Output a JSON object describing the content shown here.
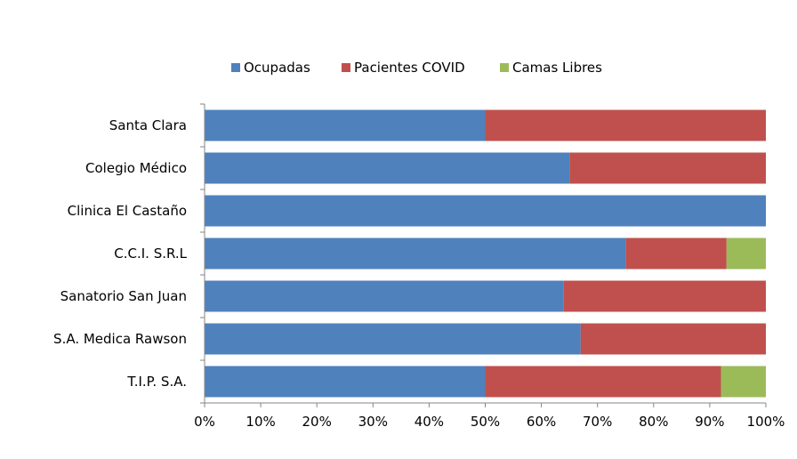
{
  "chart_data": {
    "type": "bar",
    "orientation": "horizontal",
    "stacked": "percent",
    "categories": [
      "Santa Clara",
      "Colegio Médico",
      "Clinica El Castaño",
      "C.C.I. S.R.L",
      "Sanatorio San Juan",
      "S.A. Medica Rawson",
      "T.I.P. S.A."
    ],
    "series": [
      {
        "name": "Ocupadas",
        "color": "#4f81bd",
        "values": [
          50,
          65,
          100,
          75,
          64,
          67,
          50
        ]
      },
      {
        "name": "Pacientes COVID",
        "color": "#c0504d",
        "values": [
          50,
          35,
          0,
          18,
          36,
          33,
          42
        ]
      },
      {
        "name": "Camas Libres",
        "color": "#9bbb59",
        "values": [
          0,
          0,
          0,
          7,
          0,
          0,
          8
        ]
      }
    ],
    "x_ticks": [
      "0%",
      "10%",
      "20%",
      "30%",
      "40%",
      "50%",
      "60%",
      "70%",
      "80%",
      "90%",
      "100%"
    ],
    "xlim": [
      0,
      100
    ],
    "legend_position": "top",
    "grid": false
  }
}
